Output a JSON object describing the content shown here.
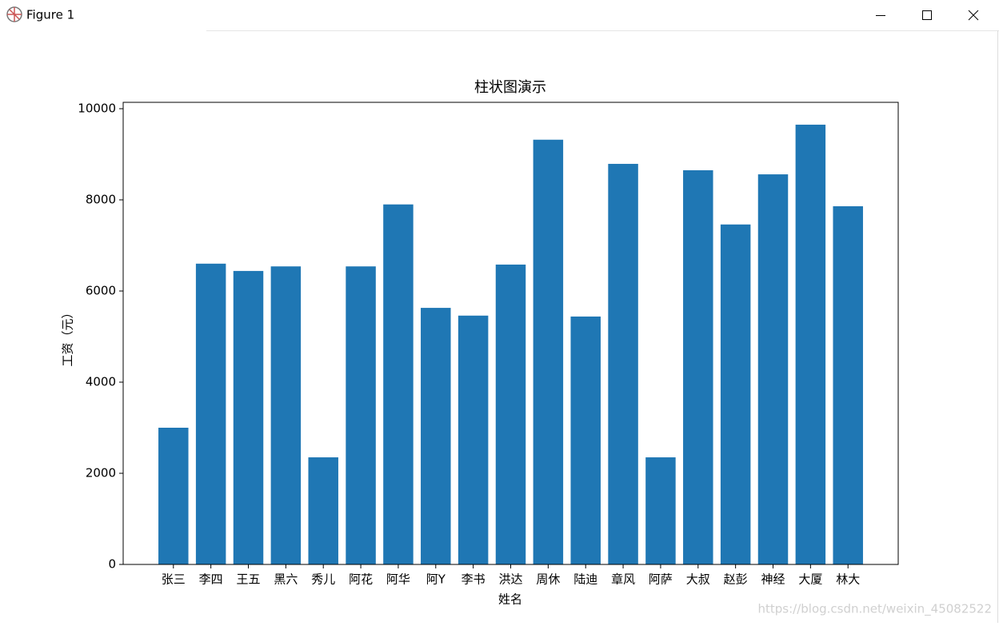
{
  "window": {
    "title": "Figure 1"
  },
  "chart_data": {
    "type": "bar",
    "title": "柱状图演示",
    "x_label": "姓名",
    "y_label": "工资（元）",
    "categories": [
      "张三",
      "李四",
      "王五",
      "黑六",
      "秀儿",
      "阿花",
      "阿华",
      "阿Y",
      "李书",
      "洪达",
      "周休",
      "陆迪",
      "章风",
      "阿萨",
      "大叔",
      "赵彭",
      "神经",
      "大厦",
      "林大"
    ],
    "values": [
      3000,
      6600,
      6440,
      6540,
      2350,
      6540,
      7900,
      5630,
      5460,
      6580,
      9320,
      5440,
      8790,
      2350,
      8650,
      7460,
      8560,
      9650,
      7860
    ],
    "color": "#1f77b4",
    "ylim": [
      0,
      10140
    ],
    "yticks": [
      0,
      2000,
      4000,
      6000,
      8000,
      10000
    ],
    "grid": false
  },
  "watermark": "https://blog.csdn.net/weixin_45082522"
}
